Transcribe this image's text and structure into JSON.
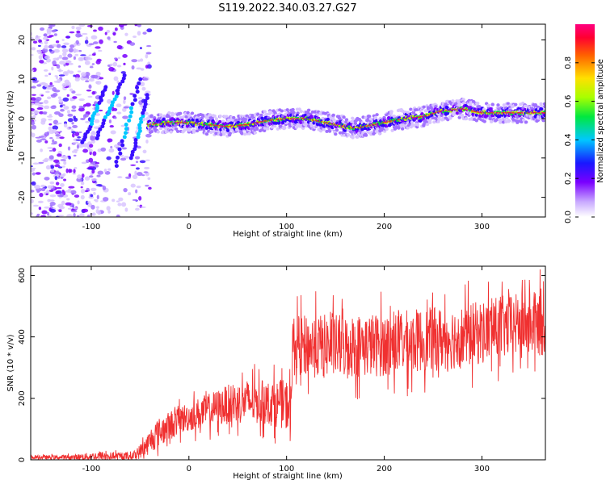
{
  "title": "S119.2022.340.03.27.G27",
  "colors": {
    "snr_line": "#f03030",
    "ridge_core": "#e83030",
    "spectrum_palette": [
      "#7a00ff",
      "#3000ff",
      "#0090ff",
      "#00e0e0",
      "#00e040",
      "#c0ff00",
      "#ffd000",
      "#ff5000",
      "#ff0060"
    ]
  },
  "chart_data": [
    {
      "type": "heatmap",
      "xlabel": "Height of straight line (km)",
      "ylabel": "Frequency (Hz)",
      "xlim": [
        -162,
        365
      ],
      "ylim": [
        -25,
        24
      ],
      "x_ticks": [
        -100,
        0,
        100,
        200,
        300
      ],
      "y_ticks": [
        -20,
        -10,
        0,
        10,
        20
      ],
      "colorbar": {
        "label": "Normalized spectral amplitude",
        "range": [
          0.0,
          1.0
        ],
        "ticks": [
          0.0,
          0.2,
          0.4,
          0.6,
          0.8
        ]
      },
      "ridge": {
        "x": [
          -40,
          -20,
          0,
          20,
          40,
          60,
          80,
          100,
          120,
          140,
          160,
          170,
          180,
          200,
          220,
          240,
          260,
          280,
          300,
          320,
          340,
          365
        ],
        "frequency": [
          -1.5,
          -1,
          -1,
          -1.5,
          -2,
          -1.5,
          -0.5,
          0,
          0,
          -1,
          -2,
          -2.5,
          -2,
          -1,
          0,
          0.5,
          2,
          2.5,
          1.5,
          1.5,
          1.5,
          1.5
        ]
      },
      "noise_region_x": [
        -162,
        -40
      ]
    },
    {
      "type": "line",
      "xlabel": "Height of straight line (km)",
      "ylabel": "SNR (10 * v/v)",
      "xlim": [
        -162,
        365
      ],
      "ylim": [
        0,
        630
      ],
      "x_ticks": [
        -100,
        0,
        100,
        200,
        300
      ],
      "y_ticks": [
        0,
        200,
        400,
        600
      ],
      "series": [
        {
          "x": [
            -162,
            -120,
            -90,
            -70,
            -55,
            -45,
            -35,
            -20,
            -10,
            0,
            20,
            40,
            60,
            80,
            100,
            105,
            106,
            130,
            160,
            200,
            240,
            280,
            320,
            340,
            365
          ],
          "mean": [
            8,
            8,
            12,
            10,
            15,
            40,
            80,
            110,
            130,
            140,
            160,
            180,
            190,
            185,
            180,
            170,
            370,
            370,
            370,
            375,
            390,
            400,
            430,
            440,
            440
          ],
          "spread": [
            8,
            10,
            20,
            15,
            20,
            40,
            60,
            60,
            60,
            60,
            70,
            80,
            90,
            90,
            100,
            100,
            120,
            130,
            130,
            130,
            130,
            130,
            130,
            130,
            130
          ]
        }
      ]
    }
  ]
}
